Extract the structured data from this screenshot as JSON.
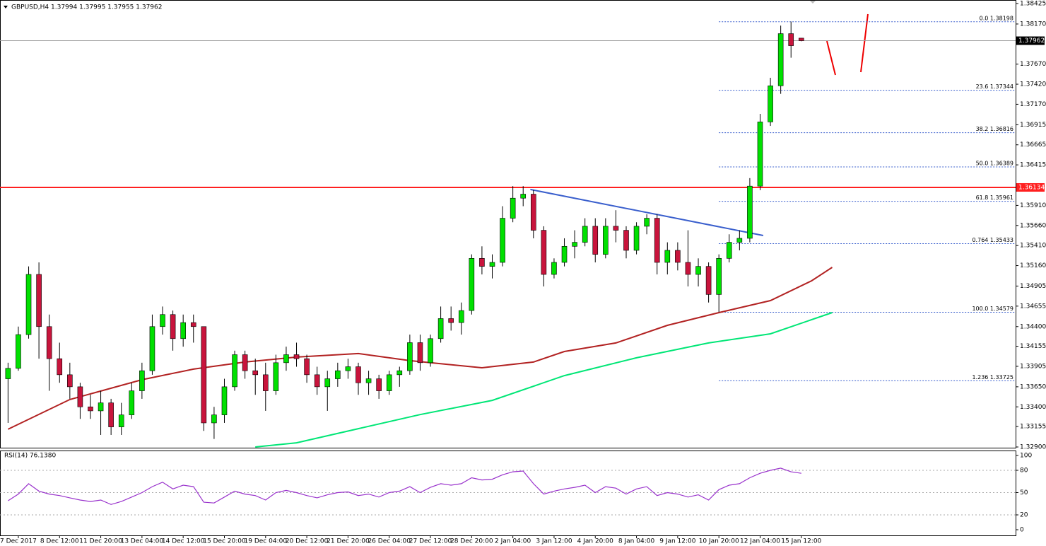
{
  "chart_data": [
    {
      "type": "candlestick",
      "title": "GBPUSD,H4  1.37994 1.37995 1.37955 1.37962",
      "xlim": [
        -0.78,
        97.8
      ],
      "ylim": [
        1.329,
        1.38425
      ],
      "yticks": [
        1.38425,
        {
          "value": 1.3817,
          "label": "1.38170"
        },
        {
          "value": 1.3767,
          "label": "1.37670"
        },
        {
          "value": 1.3742,
          "label": "1.37420"
        },
        {
          "value": 1.3717,
          "label": "1.37170"
        },
        1.36915,
        1.36665,
        1.36415,
        {
          "value": 1.3591,
          "label": "1.35910"
        },
        {
          "value": 1.3566,
          "label": "1.35660"
        },
        {
          "value": 1.3541,
          "label": "1.35410"
        },
        {
          "value": 1.3516,
          "label": "1.35160"
        },
        1.34905,
        1.34655,
        {
          "value": 1.344,
          "label": "1.34400"
        },
        1.34155,
        1.33905,
        {
          "value": 1.3365,
          "label": "1.33650"
        },
        {
          "value": 1.334,
          "label": "1.33400"
        },
        1.33155,
        {
          "value": 1.329,
          "label": "1.32900"
        }
      ],
      "xticks": [
        {
          "value": 1,
          "label": "7 Dec 2017"
        },
        {
          "value": 5,
          "label": "8 Dec 12:00"
        },
        {
          "value": 9,
          "label": "11 Dec 20:00"
        },
        {
          "value": 13,
          "label": "13 Dec 04:00"
        },
        {
          "value": 17,
          "label": "14 Dec 12:00"
        },
        {
          "value": 21,
          "label": "15 Dec 20:00"
        },
        {
          "value": 25,
          "label": "19 Dec 04:00"
        },
        {
          "value": 29,
          "label": "20 Dec 12:00"
        },
        {
          "value": 33,
          "label": "21 Dec 20:00"
        },
        {
          "value": 37,
          "label": "26 Dec 04:00"
        },
        {
          "value": 41,
          "label": "27 Dec 12:00"
        },
        {
          "value": 45,
          "label": "28 Dec 20:00"
        },
        {
          "value": 49,
          "label": "2 Jan 04:00"
        },
        {
          "value": 53,
          "label": "3 Jan 12:00"
        },
        {
          "value": 57,
          "label": "4 Jan 20:00"
        },
        {
          "value": 61,
          "label": "8 Jan 04:00"
        },
        {
          "value": 65,
          "label": "9 Jan 12:00"
        },
        {
          "value": 69,
          "label": "10 Jan 20:00"
        },
        {
          "value": 73,
          "label": "12 Jan 04:00"
        },
        {
          "value": 77,
          "label": "15 Jan 12:00"
        }
      ],
      "up_color": "#00e000",
      "down_color": "#c8143c",
      "open": [
        1.3375,
        1.3388,
        1.343,
        1.3505,
        1.344,
        1.34,
        1.338,
        1.3365,
        1.334,
        1.3335,
        1.3345,
        1.3315,
        1.333,
        1.336,
        1.3385,
        1.344,
        1.3455,
        1.3425,
        1.3445,
        1.344,
        1.332,
        1.333,
        1.3365,
        1.3405,
        1.3385,
        1.338,
        1.336,
        1.3395,
        1.3405,
        1.34,
        1.338,
        1.3365,
        1.3375,
        1.3385,
        1.339,
        1.337,
        1.3375,
        1.336,
        1.338,
        1.3385,
        1.342,
        1.3395,
        1.3425,
        1.345,
        1.3445,
        1.346,
        1.3525,
        1.3515,
        1.352,
        1.3575,
        1.36,
        1.3605,
        1.356,
        1.3505,
        1.352,
        1.354,
        1.3545,
        1.3565,
        1.353,
        1.3565,
        1.356,
        1.3535,
        1.3565,
        1.3575,
        1.352,
        1.3535,
        1.352,
        1.3505,
        1.3515,
        1.348,
        1.3525,
        1.3545,
        1.355,
        1.3615,
        1.3695,
        1.374,
        1.3805,
        1.37994
      ],
      "high": [
        1.3395,
        1.344,
        1.3515,
        1.352,
        1.3455,
        1.342,
        1.3395,
        1.337,
        1.3355,
        1.336,
        1.335,
        1.3345,
        1.337,
        1.3395,
        1.3455,
        1.3465,
        1.346,
        1.3455,
        1.3455,
        1.344,
        1.334,
        1.3375,
        1.341,
        1.341,
        1.34,
        1.3395,
        1.3405,
        1.3415,
        1.342,
        1.3405,
        1.339,
        1.3385,
        1.3395,
        1.34,
        1.3395,
        1.3385,
        1.338,
        1.3385,
        1.339,
        1.343,
        1.343,
        1.343,
        1.3465,
        1.3465,
        1.347,
        1.353,
        1.354,
        1.353,
        1.359,
        1.3615,
        1.3615,
        1.361,
        1.3565,
        1.3525,
        1.355,
        1.356,
        1.3575,
        1.3575,
        1.3575,
        1.3585,
        1.3565,
        1.357,
        1.358,
        1.358,
        1.3545,
        1.3545,
        1.356,
        1.3525,
        1.352,
        1.353,
        1.3555,
        1.356,
        1.3625,
        1.3705,
        1.375,
        1.3815,
        1.382,
        1.37995
      ],
      "low": [
        1.332,
        1.3385,
        1.3425,
        1.34,
        1.336,
        1.337,
        1.335,
        1.3325,
        1.3325,
        1.3305,
        1.3305,
        1.3305,
        1.3325,
        1.335,
        1.338,
        1.343,
        1.341,
        1.3415,
        1.342,
        1.331,
        1.33,
        1.332,
        1.336,
        1.3375,
        1.3355,
        1.3335,
        1.3355,
        1.3385,
        1.339,
        1.337,
        1.3355,
        1.3335,
        1.3365,
        1.3375,
        1.3355,
        1.3355,
        1.335,
        1.3355,
        1.3365,
        1.338,
        1.3385,
        1.339,
        1.342,
        1.3435,
        1.343,
        1.3455,
        1.3505,
        1.35,
        1.3515,
        1.357,
        1.359,
        1.355,
        1.349,
        1.35,
        1.3515,
        1.3525,
        1.354,
        1.352,
        1.3525,
        1.3545,
        1.3525,
        1.353,
        1.3555,
        1.3505,
        1.3505,
        1.351,
        1.349,
        1.349,
        1.347,
        1.3458,
        1.352,
        1.3535,
        1.3545,
        1.361,
        1.369,
        1.373,
        1.3775,
        1.37955
      ],
      "close": [
        1.3388,
        1.343,
        1.3505,
        1.344,
        1.34,
        1.338,
        1.3365,
        1.334,
        1.3335,
        1.3345,
        1.3315,
        1.333,
        1.336,
        1.3385,
        1.344,
        1.3455,
        1.3425,
        1.3445,
        1.344,
        1.332,
        1.333,
        1.3365,
        1.3405,
        1.3385,
        1.338,
        1.336,
        1.3395,
        1.3405,
        1.34,
        1.338,
        1.3365,
        1.3375,
        1.3385,
        1.339,
        1.337,
        1.3375,
        1.336,
        1.338,
        1.3385,
        1.342,
        1.3395,
        1.3425,
        1.345,
        1.3445,
        1.346,
        1.3525,
        1.3515,
        1.352,
        1.3575,
        1.36,
        1.3605,
        1.356,
        1.3505,
        1.352,
        1.354,
        1.3545,
        1.3565,
        1.353,
        1.3565,
        1.356,
        1.3535,
        1.3565,
        1.3575,
        1.352,
        1.3535,
        1.352,
        1.3505,
        1.3515,
        1.348,
        1.3525,
        1.3545,
        1.355,
        1.3615,
        1.3695,
        1.374,
        1.3805,
        1.379,
        1.37962
      ],
      "lines": [
        {
          "color": "#b22222",
          "x": [
            0,
            6,
            13,
            18,
            23,
            28,
            34,
            39,
            46,
            51,
            54,
            59,
            64,
            69,
            74,
            78,
            80
          ],
          "values": [
            1.33121,
            1.33491,
            1.33738,
            1.3387,
            1.33958,
            1.3402,
            1.34064,
            1.33976,
            1.33887,
            1.33958,
            1.3409,
            1.34196,
            1.34416,
            1.34574,
            1.34724,
            1.34971,
            1.35138
          ]
        },
        {
          "color": "#00e676",
          "x": [
            24,
            28,
            34,
            40,
            47,
            54,
            61,
            68,
            74,
            80
          ],
          "values": [
            1.329,
            1.32952,
            1.33128,
            1.33304,
            1.33481,
            1.33789,
            1.34011,
            1.34196,
            1.3431,
            1.34574
          ]
        },
        {
          "color": "#3a5fcd",
          "x": [
            50.7,
            73.3
          ],
          "values": [
            1.36108,
            1.35535
          ]
        }
      ],
      "level": {
        "value": 1.36134,
        "color": "#ff2020"
      },
      "current": {
        "value": 1.37962,
        "color": "#a0a0a0"
      },
      "fibonacci": {
        "x": 69,
        "color": "#3a5fcd",
        "levels": [
          {
            "value": 1.38198,
            "label": "0.0 1.38198"
          },
          {
            "value": 1.37344,
            "label": "23.6 1.37344"
          },
          {
            "value": 1.36816,
            "label": "38.2 1.36816"
          },
          {
            "value": 1.36389,
            "label": "50.0 1.36389"
          },
          {
            "value": 1.35961,
            "label": "61.8 1.35961"
          },
          {
            "value": 1.35433,
            "label": "0.764 1.35433"
          },
          {
            "value": 1.34579,
            "label": "100.0 1.34579"
          },
          {
            "value": 1.33725,
            "label": "1.236 1.33725"
          }
        ]
      }
    },
    {
      "type": "line",
      "title": "RSI(14) 76.1380",
      "color": "#9932cc",
      "xlim": [
        -0.78,
        97.8
      ],
      "ylim": [
        0,
        100
      ],
      "yticks": [
        100,
        80,
        50,
        20,
        0
      ],
      "values": [
        39,
        48,
        62,
        52,
        48,
        46,
        43,
        40,
        38,
        40,
        34,
        38,
        44,
        50,
        58,
        64,
        55,
        60,
        58,
        37,
        36,
        44,
        52,
        48,
        46,
        40,
        50,
        53,
        50,
        46,
        43,
        47,
        50,
        51,
        46,
        48,
        44,
        50,
        52,
        58,
        50,
        57,
        62,
        60,
        62,
        70,
        67,
        68,
        74,
        78,
        79,
        62,
        48,
        52,
        55,
        57,
        60,
        50,
        58,
        56,
        48,
        55,
        58,
        46,
        50,
        48,
        44,
        47,
        40,
        54,
        60,
        62,
        70,
        76,
        80,
        83,
        78,
        76
      ]
    }
  ]
}
